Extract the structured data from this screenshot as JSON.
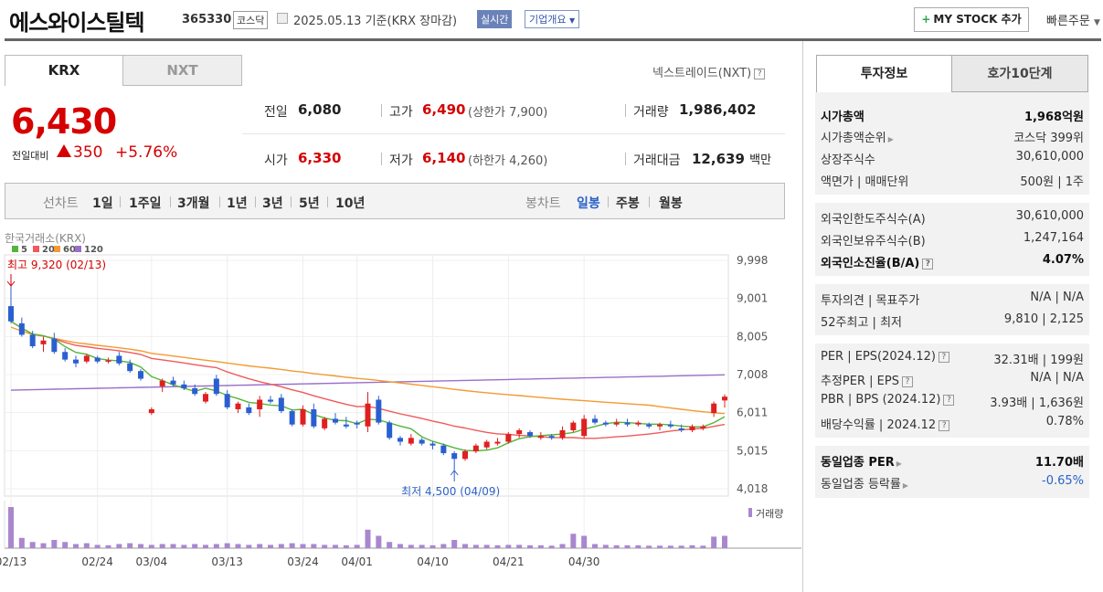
{
  "header": {
    "title": "에스와이스틸텍",
    "code": "365330",
    "market": "코스닥",
    "date": "2025.05.13",
    "basis": "기준(KRX 장마감)",
    "realtime": "실시간",
    "company_overview": "기업개요",
    "my_stock": "MY STOCK 추가",
    "quick_order": "빠른주문"
  },
  "tabs": {
    "krx": "KRX",
    "nxt": "NXT",
    "nextrade": "넥스트레이드(NXT)"
  },
  "price": {
    "current": "6,430",
    "change_label": "전일대비",
    "change": "350",
    "change_pct": "+5.76%"
  },
  "quote": {
    "prev": {
      "label": "전일",
      "value": "6,080"
    },
    "high": {
      "label": "고가",
      "value": "6,490",
      "sub": "(상한가 7,900)"
    },
    "volume": {
      "label": "거래량",
      "value": "1,986,402"
    },
    "open": {
      "label": "시가",
      "value": "6,330"
    },
    "low": {
      "label": "저가",
      "value": "6,140",
      "sub": "(하한가 4,260)"
    },
    "amount": {
      "label": "거래대금",
      "value": "12,639",
      "unit": "백만"
    }
  },
  "period": {
    "line_label": "선차트",
    "line_items": [
      "1일",
      "1주일",
      "3개월",
      "1년",
      "3년",
      "5년",
      "10년"
    ],
    "candle_label": "봉차트",
    "candle_items": [
      "일봉",
      "주봉",
      "월봉"
    ],
    "selected_candle": "일봉"
  },
  "chart_data": {
    "type": "candlestick",
    "source": "한국거래소(KRX)",
    "legend": [
      "5",
      "20",
      "60",
      "120"
    ],
    "colors": {
      "up": "#e02020",
      "down": "#2a5fd0",
      "ma5": "#55b53a",
      "ma20": "#f05a5a",
      "ma60": "#f39a32",
      "ma120": "#9a6fc9"
    },
    "y_ticks": [
      "9,998",
      "9,001",
      "8,005",
      "7,008",
      "6,011",
      "5,015",
      "4,018"
    ],
    "ylim": [
      4018,
      9998
    ],
    "x_ticks": [
      "02/13",
      "02/24",
      "03/04",
      "03/13",
      "03/24",
      "04/01",
      "04/10",
      "04/21",
      "04/30"
    ],
    "max_label": "최고 9,320 (02/13)",
    "min_label": "최저 4,500 (04/09)",
    "volume_label": "거래량",
    "candles": [
      [
        8800,
        9320,
        8350,
        8400,
        1.0
      ],
      [
        8350,
        8500,
        8000,
        8050,
        0.25
      ],
      [
        8050,
        8150,
        7700,
        7750,
        0.15
      ],
      [
        7800,
        8000,
        7600,
        7900,
        0.12
      ],
      [
        7950,
        8100,
        7550,
        7600,
        0.2
      ],
      [
        7600,
        7700,
        7350,
        7400,
        0.15
      ],
      [
        7400,
        7500,
        7200,
        7300,
        0.1
      ],
      [
        7350,
        7550,
        7300,
        7500,
        0.12
      ],
      [
        7450,
        7500,
        7300,
        7350,
        0.08
      ],
      [
        7350,
        7450,
        7300,
        7380,
        0.07
      ],
      [
        7500,
        7600,
        7250,
        7300,
        0.1
      ],
      [
        7300,
        7400,
        7050,
        7100,
        0.12
      ],
      [
        7100,
        7150,
        6850,
        6900,
        0.1
      ],
      [
        6000,
        6150,
        5950,
        6100,
        0.08
      ],
      [
        6700,
        6900,
        6550,
        6850,
        0.1
      ],
      [
        6850,
        6950,
        6700,
        6750,
        0.1
      ],
      [
        6750,
        6850,
        6600,
        6650,
        0.08
      ],
      [
        6650,
        6750,
        6450,
        6500,
        0.1
      ],
      [
        6300,
        6550,
        6250,
        6500,
        0.08
      ],
      [
        6900,
        7000,
        6450,
        6500,
        0.1
      ],
      [
        6500,
        6600,
        6100,
        6150,
        0.12
      ],
      [
        6100,
        6300,
        6000,
        6250,
        0.1
      ],
      [
        6150,
        6250,
        5950,
        6000,
        0.08
      ],
      [
        6100,
        6450,
        5900,
        6350,
        0.1
      ],
      [
        6350,
        6450,
        6250,
        6300,
        0.08
      ],
      [
        6400,
        6500,
        6000,
        6050,
        0.1
      ],
      [
        6050,
        6100,
        5650,
        5700,
        0.12
      ],
      [
        5700,
        6200,
        5650,
        6100,
        0.1
      ],
      [
        6100,
        6250,
        5600,
        5650,
        0.1
      ],
      [
        5600,
        5900,
        5550,
        5850,
        0.08
      ],
      [
        5850,
        6000,
        5700,
        5750,
        0.08
      ],
      [
        5700,
        5900,
        5600,
        5650,
        0.07
      ],
      [
        5750,
        5800,
        5600,
        5700,
        0.08
      ],
      [
        5650,
        6550,
        5500,
        6250,
        0.45
      ],
      [
        6350,
        6450,
        5700,
        5750,
        0.3
      ],
      [
        5750,
        5800,
        5300,
        5350,
        0.15
      ],
      [
        5350,
        5400,
        5150,
        5250,
        0.1
      ],
      [
        5200,
        5450,
        5150,
        5350,
        0.08
      ],
      [
        5300,
        5350,
        5150,
        5200,
        0.08
      ],
      [
        5200,
        5250,
        5050,
        5150,
        0.07
      ],
      [
        5150,
        5200,
        4900,
        4950,
        0.1
      ],
      [
        4950,
        5000,
        4500,
        4800,
        0.2
      ],
      [
        4800,
        5050,
        4750,
        5000,
        0.1
      ],
      [
        5000,
        5200,
        4950,
        5150,
        0.08
      ],
      [
        5100,
        5300,
        5050,
        5250,
        0.08
      ],
      [
        5200,
        5350,
        5150,
        5250,
        0.07
      ],
      [
        5250,
        5500,
        5200,
        5450,
        0.08
      ],
      [
        5450,
        5600,
        5350,
        5550,
        0.08
      ],
      [
        5500,
        5550,
        5350,
        5400,
        0.07
      ],
      [
        5350,
        5500,
        5300,
        5400,
        0.07
      ],
      [
        5400,
        5450,
        5300,
        5350,
        0.06
      ],
      [
        5350,
        5650,
        5300,
        5550,
        0.1
      ],
      [
        5550,
        5800,
        5500,
        5750,
        0.35
      ],
      [
        5400,
        5950,
        5350,
        5850,
        0.3
      ],
      [
        5850,
        5950,
        5700,
        5750,
        0.1
      ],
      [
        5750,
        5800,
        5650,
        5700,
        0.08
      ],
      [
        5700,
        5850,
        5650,
        5750,
        0.07
      ],
      [
        5750,
        5850,
        5650,
        5700,
        0.07
      ],
      [
        5700,
        5800,
        5650,
        5750,
        0.07
      ],
      [
        5700,
        5750,
        5600,
        5650,
        0.06
      ],
      [
        5650,
        5750,
        5550,
        5700,
        0.06
      ],
      [
        5700,
        5800,
        5600,
        5650,
        0.06
      ],
      [
        5600,
        5700,
        5500,
        5550,
        0.06
      ],
      [
        5550,
        5700,
        5500,
        5650,
        0.07
      ],
      [
        5600,
        5700,
        5550,
        5650,
        0.06
      ],
      [
        6000,
        6300,
        5900,
        6250,
        0.28
      ],
      [
        6330,
        6490,
        6140,
        6430,
        0.3
      ]
    ]
  },
  "invest_tabs": {
    "info": "투자정보",
    "hoga": "호가10단계"
  },
  "invest": {
    "mcap": {
      "label": "시가총액",
      "value": "1,968억원"
    },
    "mcap_rank": {
      "label": "시가총액순위",
      "value": "코스닥 399위"
    },
    "shares": {
      "label": "상장주식수",
      "value": "30,610,000"
    },
    "par": {
      "label": "액면가 | 매매단위",
      "value": "500원 | 1주"
    },
    "foreign_limit": {
      "label": "외국인한도주식수(A)",
      "value": "30,610,000"
    },
    "foreign_hold": {
      "label": "외국인보유주식수(B)",
      "value": "1,247,164"
    },
    "foreign_ratio": {
      "label": "외국인소진율(B/A)",
      "value": "4.07%"
    },
    "opinion": {
      "label": "투자의견 | 목표주가",
      "value": "N/A | N/A"
    },
    "w52": {
      "label": "52주최고 | 최저",
      "value": "9,810 | 2,125"
    },
    "per": {
      "label": "PER | EPS(2024.12)",
      "value": "32.31배 | 199원"
    },
    "est_per": {
      "label": "추정PER | EPS",
      "value": "N/A | N/A"
    },
    "pbr": {
      "label": "PBR | BPS (2024.12)",
      "value": "3.93배 | 1,636원"
    },
    "dividend": {
      "label": "배당수익률 | 2024.12",
      "value": "0.78%"
    },
    "sector_per": {
      "label": "동일업종 PER",
      "value": "11.70배"
    },
    "sector_rate": {
      "label": "동일업종 등락률",
      "value": "-0.65%"
    }
  }
}
